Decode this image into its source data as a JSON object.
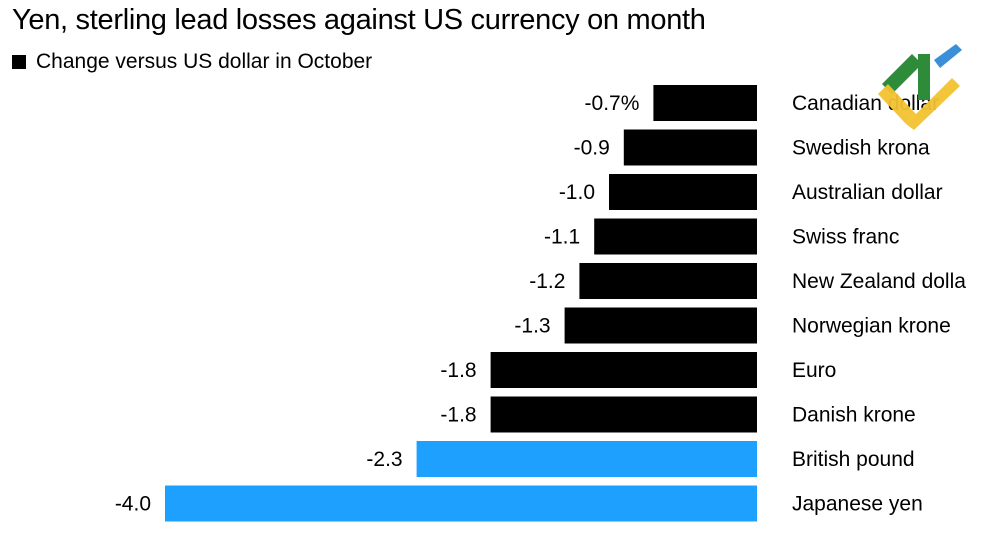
{
  "title": "Yen, sterling lead losses against US currency on month",
  "legend": {
    "label": "Change versus US dollar in October",
    "color": "#000000"
  },
  "colors": {
    "default": "#000000",
    "highlight": "#1ea0ff"
  },
  "chart_data": {
    "type": "bar",
    "orientation": "horizontal",
    "title": "Yen, sterling lead losses against US currency on month",
    "xlabel": "",
    "ylabel": "",
    "xlim": [
      -4.0,
      0
    ],
    "categories": [
      "Canadian dollar",
      "Swedish krona",
      "Australian dollar",
      "Swiss franc",
      "New Zealand dollar",
      "Norwegian krone",
      "Euro",
      "Danish krone",
      "British pound",
      "Japanese yen"
    ],
    "category_labels": [
      "Canadian dollar",
      "Swedish krona",
      "Australian dollar",
      "Swiss franc",
      "New Zealand dolla",
      "Norwegian krone",
      "Euro",
      "Danish krone",
      "British pound",
      "Japanese yen"
    ],
    "values": [
      -0.7,
      -0.9,
      -1.0,
      -1.1,
      -1.2,
      -1.3,
      -1.8,
      -1.8,
      -2.3,
      -4.0
    ],
    "value_labels": [
      "-0.7%",
      "-0.9",
      "-1.0",
      "-1.1",
      "-1.2",
      "-1.3",
      "-1.8",
      "-1.8",
      "-2.3",
      "-4.0"
    ],
    "highlighted": [
      false,
      false,
      false,
      false,
      false,
      false,
      false,
      false,
      true,
      true
    ],
    "series": [
      {
        "name": "Change versus US dollar in October",
        "values": [
          -0.7,
          -0.9,
          -1.0,
          -1.1,
          -1.2,
          -1.3,
          -1.8,
          -1.8,
          -2.3,
          -4.0
        ]
      }
    ]
  },
  "logo": {
    "name": "watermark-logo"
  }
}
